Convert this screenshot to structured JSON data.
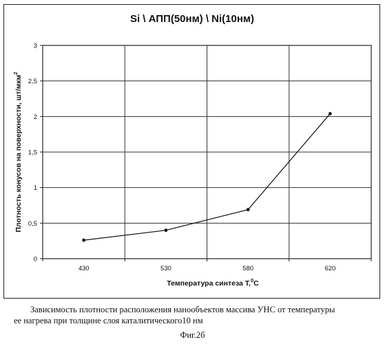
{
  "chart_data": {
    "type": "line",
    "title": "Si \\ АПП(50нм) \\ Ni(10нм)",
    "xlabel_main": "Температура синтеза T,",
    "xlabel_sup": "0",
    "xlabel_tail": "C",
    "ylabel_main": "Плотность конусов на поверхности, шт/мкм",
    "ylabel_sup": "2",
    "categories": [
      "430",
      "530",
      "580",
      "620"
    ],
    "values": [
      0.26,
      0.4,
      0.69,
      2.04
    ],
    "ylim": [
      0,
      3
    ],
    "yticks": [
      0,
      0.5,
      1,
      1.5,
      2,
      2.5,
      3
    ],
    "ytick_labels": [
      "0",
      "0,5",
      "1",
      "1,5",
      "2",
      "2,5",
      "3"
    ],
    "grid": true,
    "line_color": "#111111"
  },
  "caption": {
    "line1": "Зависимость плотности расположения нанообъектов массива УНС от температуры",
    "line2": "ее нагрева при толщине слоя каталитического10 нм"
  },
  "figure_label": "Фиг.2б"
}
